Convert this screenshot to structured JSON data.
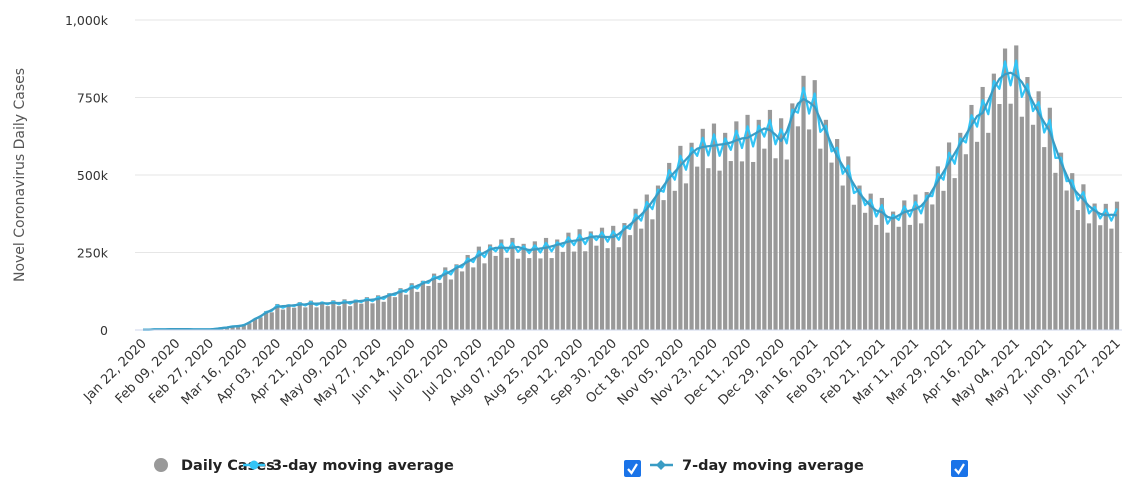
{
  "chart_data": {
    "type": "bar",
    "y_label": "Novel Coronavirus Daily Cases",
    "ylim": [
      0,
      1000000
    ],
    "yticks": [
      0,
      {
        "value": 250000,
        "label": "250k"
      },
      {
        "value": 500000,
        "label": "500k"
      },
      {
        "value": 750000,
        "label": "750k"
      },
      {
        "value": 1000000,
        "label": "1,000k"
      }
    ],
    "grid": true,
    "legend": "bottom",
    "categories": [
      "Jan 22, 2020",
      null,
      null,
      null,
      null,
      null,
      "Feb 09, 2020",
      null,
      null,
      null,
      null,
      null,
      "Feb 27, 2020",
      null,
      null,
      null,
      null,
      null,
      "Mar 16, 2020",
      null,
      null,
      null,
      null,
      null,
      "Apr 03, 2020",
      null,
      null,
      null,
      null,
      null,
      "Apr 21, 2020",
      null,
      null,
      null,
      null,
      null,
      "May 09, 2020",
      null,
      null,
      null,
      null,
      null,
      "May 27, 2020",
      null,
      null,
      null,
      null,
      null,
      "Jun 14, 2020",
      null,
      null,
      null,
      null,
      null,
      "Jul 02, 2020",
      null,
      null,
      null,
      null,
      null,
      "Jul 20, 2020",
      null,
      null,
      null,
      null,
      null,
      "Aug 07, 2020",
      null,
      null,
      null,
      null,
      null,
      "Aug 25, 2020",
      null,
      null,
      null,
      null,
      null,
      "Sep 12, 2020",
      null,
      null,
      null,
      null,
      null,
      "Sep 30, 2020",
      null,
      null,
      null,
      null,
      null,
      "Oct 18, 2020",
      null,
      null,
      null,
      null,
      null,
      "Nov 05, 2020",
      null,
      null,
      null,
      null,
      null,
      "Nov 23, 2020",
      null,
      null,
      null,
      null,
      null,
      "Dec 11, 2020",
      null,
      null,
      null,
      null,
      null,
      "Dec 29, 2020",
      null,
      null,
      null,
      null,
      null,
      "Jan 16, 2021",
      null,
      null,
      null,
      null,
      null,
      "Feb 03, 2021",
      null,
      null,
      null,
      null,
      null,
      "Feb 21, 2021",
      null,
      null,
      null,
      null,
      null,
      "Mar 11, 2021",
      null,
      null,
      null,
      null,
      null,
      "Mar 29, 2021",
      null,
      null,
      null,
      null,
      null,
      "Apr 16, 2021",
      null,
      null,
      null,
      null,
      null,
      "May 04, 2021",
      null,
      null,
      null,
      null,
      null,
      "May 22, 2021",
      null,
      null,
      null,
      null,
      null,
      "Jun 09, 2021",
      null,
      null,
      null,
      null,
      null,
      "Jun 27, 2021"
    ],
    "series": [
      {
        "name": "Daily Cases",
        "type": "bar",
        "color": "#999999",
        "values": [
          1000,
          1000,
          2000,
          2000,
          2000,
          3000,
          3000,
          3000,
          3000,
          2000,
          2000,
          2000,
          2000,
          3000,
          6000,
          7000,
          12000,
          11000,
          17000,
          22000,
          37000,
          41000,
          61000,
          57000,
          84000,
          66000,
          83000,
          72000,
          90000,
          73000,
          95000,
          73000,
          91000,
          77000,
          96000,
          77000,
          99000,
          77000,
          98000,
          85000,
          106000,
          86000,
          112000,
          91000,
          119000,
          106000,
          135000,
          114000,
          151000,
          123000,
          159000,
          142000,
          182000,
          152000,
          202000,
          163000,
          212000,
          189000,
          242000,
          202000,
          269000,
          215000,
          276000,
          239000,
          292000,
          233000,
          297000,
          230000,
          278000,
          232000,
          286000,
          231000,
          297000,
          232000,
          292000,
          252000,
          314000,
          253000,
          325000,
          254000,
          318000,
          272000,
          330000,
          264000,
          336000,
          267000,
          345000,
          306000,
          391000,
          327000,
          437000,
          357000,
          466000,
          419000,
          539000,
          449000,
          594000,
          473000,
          604000,
          527000,
          649000,
          522000,
          666000,
          514000,
          636000,
          545000,
          673000,
          544000,
          694000,
          542000,
          678000,
          585000,
          710000,
          554000,
          683000,
          550000,
          731000,
          657000,
          820000,
          647000,
          806000,
          585000,
          678000,
          540000,
          616000,
          466000,
          560000,
          404000,
          466000,
          378000,
          440000,
          339000,
          426000,
          314000,
          382000,
          333000,
          418000,
          339000,
          437000,
          344000,
          445000,
          405000,
          528000,
          449000,
          605000,
          490000,
          636000,
          567000,
          726000,
          607000,
          784000,
          636000,
          827000,
          729000,
          908000,
          730000,
          918000,
          688000,
          816000,
          662000,
          770000,
          590000,
          717000,
          507000,
          572000,
          450000,
          506000,
          387000,
          470000,
          344000,
          408000,
          338000,
          407000,
          327000,
          414000
        ]
      },
      {
        "name": "3-day moving average",
        "type": "line",
        "color": "#33c4f5",
        "values": [
          1000,
          1000,
          2000,
          2000,
          2000,
          3000,
          3000,
          3000,
          3000,
          2000,
          2000,
          2000,
          2000,
          4000,
          6000,
          8000,
          12000,
          12000,
          16000,
          24000,
          36000,
          43000,
          58000,
          62000,
          80000,
          72000,
          80000,
          77000,
          86000,
          79000,
          90000,
          80000,
          89000,
          83000,
          91000,
          83000,
          93000,
          85000,
          95000,
          90000,
          101000,
          93000,
          106000,
          100000,
          115000,
          113000,
          129000,
          123000,
          143000,
          134000,
          155000,
          152000,
          173000,
          164000,
          191000,
          179000,
          206000,
          202000,
          231000,
          219000,
          254000,
          235000,
          268000,
          254000,
          278000,
          252000,
          281000,
          252000,
          270000,
          248000,
          273000,
          250000,
          281000,
          254000,
          283000,
          269000,
          299000,
          274000,
          307000,
          277000,
          309000,
          290000,
          315000,
          285000,
          318000,
          291000,
          335000,
          326000,
          373000,
          353000,
          413000,
          390000,
          453000,
          446000,
          515000,
          485000,
          562000,
          517000,
          587000,
          562000,
          620000,
          563000,
          631000,
          562000,
          618000,
          581000,
          643000,
          587000,
          657000,
          592000,
          659000,
          624000,
          677000,
          599000,
          647000,
          602000,
          711000,
          701000,
          782000,
          698000,
          763000,
          639000,
          659000,
          576000,
          588000,
          504000,
          530000,
          442000,
          453000,
          403000,
          420000,
          366000,
          403000,
          343000,
          371000,
          355000,
          399000,
          366000,
          413000,
          376000,
          433000,
          432000,
          504000,
          485000,
          572000,
          536000,
          618000,
          605000,
          693000,
          656000,
          742000,
          696000,
          803000,
          778000,
          866000,
          789000,
          869000,
          752000,
          793000,
          706000,
          735000,
          637000,
          678000,
          555000,
          556000,
          480000,
          483000,
          418000,
          445000,
          376000,
          397000,
          360000,
          389000,
          353000,
          392000
        ]
      },
      {
        "name": "7-day moving average",
        "type": "line",
        "color": "#3a9cc4",
        "values": [
          1000,
          1000,
          2000,
          2000,
          2000,
          3000,
          3000,
          3000,
          3000,
          2000,
          2000,
          2000,
          2000,
          4000,
          6000,
          8000,
          11000,
          13000,
          15000,
          25000,
          35000,
          45000,
          55000,
          65000,
          75000,
          77000,
          78000,
          80000,
          82000,
          83000,
          85000,
          85000,
          86000,
          86000,
          87000,
          87000,
          88000,
          90000,
          92000,
          94000,
          96000,
          98000,
          100000,
          106000,
          112000,
          118000,
          123000,
          129000,
          135000,
          143000,
          150000,
          158000,
          165000,
          173000,
          180000,
          190000,
          200000,
          210000,
          220000,
          230000,
          240000,
          250000,
          260000,
          265000,
          265000,
          265000,
          265000,
          268000,
          262000,
          258000,
          260000,
          263000,
          265000,
          270000,
          275000,
          280000,
          285000,
          288000,
          290000,
          295000,
          300000,
          302000,
          300000,
          300000,
          300000,
          310000,
          325000,
          340000,
          355000,
          372000,
          390000,
          415000,
          440000,
          465000,
          490000,
          510000,
          530000,
          550000,
          570000,
          585000,
          590000,
          593000,
          595000,
          598000,
          600000,
          605000,
          612000,
          618000,
          620000,
          630000,
          640000,
          650000,
          645000,
          630000,
          610000,
          640000,
          690000,
          730000,
          745000,
          735000,
          720000,
          680000,
          640000,
          600000,
          560000,
          530000,
          500000,
          470000,
          440000,
          420000,
          400000,
          385000,
          380000,
          365000,
          360000,
          370000,
          380000,
          385000,
          390000,
          400000,
          420000,
          450000,
          480000,
          510000,
          540000,
          570000,
          600000,
          630000,
          660000,
          690000,
          700000,
          740000,
          780000,
          810000,
          825000,
          830000,
          820000,
          800000,
          770000,
          735000,
          700000,
          670000,
          640000,
          590000,
          540000,
          500000,
          460000,
          440000,
          420000,
          400000,
          385000,
          375000,
          370000,
          372000,
          370000
        ]
      }
    ]
  }
}
